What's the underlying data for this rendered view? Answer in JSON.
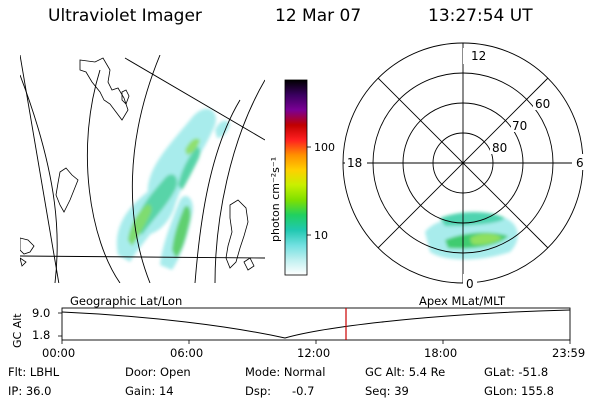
{
  "header": {
    "title": "Ultraviolet Imager",
    "date": "12 Mar 07",
    "time": "13:27:54 UT"
  },
  "map_label": "Geographic Lat/Lon",
  "polar_label": "Apex MLat/MLT",
  "colorbar": {
    "unit": "photon cm⁻²s⁻¹",
    "ticks": [
      "100",
      "10"
    ],
    "colors": [
      "#000000",
      "#3a0060",
      "#7a0095",
      "#c00000",
      "#ff2020",
      "#ff9000",
      "#ffd000",
      "#c8f000",
      "#7fe000",
      "#20d060",
      "#20c8b0",
      "#70e0e0",
      "#c0f0f0",
      "#ffffff"
    ]
  },
  "polar": {
    "mlt_labels": {
      "top": "12",
      "bottom": "0",
      "left": "18",
      "right": "6"
    },
    "lat_labels": [
      "60",
      "70",
      "80"
    ]
  },
  "altitude_plot": {
    "ylabel": "GC Alt",
    "y_ticks": [
      "9.0",
      "1.8"
    ],
    "x_ticks": [
      "00:00",
      "06:00",
      "12:00",
      "18:00",
      "23:59"
    ],
    "marker_color": "#cc0000"
  },
  "info": {
    "flt": "Flt: LBHL",
    "ip": "IP: 36.0",
    "door": "Door: Open",
    "gain": "Gain: 14",
    "mode": "Mode: Normal",
    "dsp_label": "Dsp:",
    "dsp_value": "-0.7",
    "gc_alt": "GC Alt: 5.4 Re",
    "seq": "Seq: 39",
    "glat": "GLat: -51.8",
    "glon": "GLon: 155.8"
  }
}
